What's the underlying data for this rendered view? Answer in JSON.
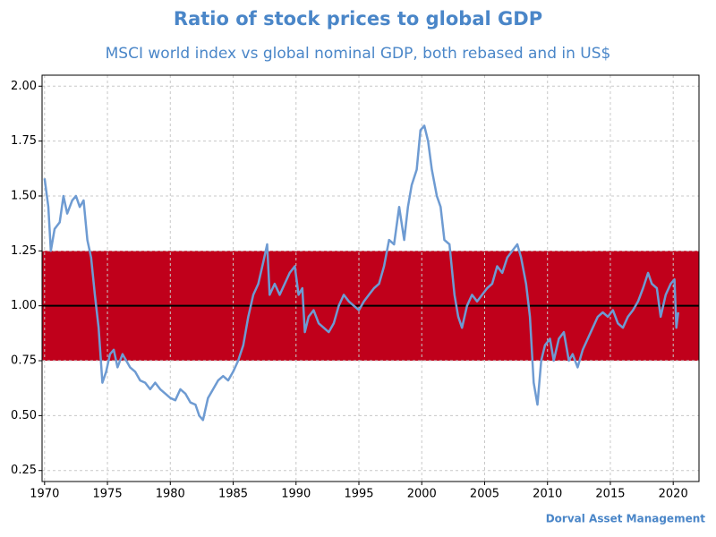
{
  "chart_data": {
    "type": "line",
    "title": "Ratio of stock prices to global GDP",
    "subtitle": "MSCI world index vs global nominal GDP, both rebased and in US$",
    "source": "Dorval Asset Management",
    "x": [
      1970.0,
      1970.3,
      1970.5,
      1970.8,
      1971.2,
      1971.5,
      1971.8,
      1972.2,
      1972.5,
      1972.8,
      1973.1,
      1973.4,
      1973.7,
      1974.0,
      1974.3,
      1974.6,
      1974.9,
      1975.2,
      1975.5,
      1975.8,
      1976.2,
      1976.5,
      1976.8,
      1977.2,
      1977.6,
      1978.0,
      1978.4,
      1978.8,
      1979.2,
      1979.6,
      1980.0,
      1980.4,
      1980.8,
      1981.2,
      1981.6,
      1982.0,
      1982.3,
      1982.6,
      1983.0,
      1983.4,
      1983.8,
      1984.2,
      1984.6,
      1985.0,
      1985.4,
      1985.8,
      1986.2,
      1986.6,
      1987.0,
      1987.4,
      1987.7,
      1987.9,
      1988.3,
      1988.7,
      1989.1,
      1989.5,
      1989.9,
      1990.2,
      1990.5,
      1990.7,
      1991.0,
      1991.4,
      1991.8,
      1992.2,
      1992.6,
      1993.0,
      1993.4,
      1993.8,
      1994.2,
      1994.6,
      1995.0,
      1995.4,
      1995.8,
      1996.2,
      1996.6,
      1997.0,
      1997.4,
      1997.8,
      1998.2,
      1998.6,
      1998.9,
      1999.2,
      1999.6,
      1999.9,
      2000.2,
      2000.5,
      2000.8,
      2001.2,
      2001.5,
      2001.8,
      2002.2,
      2002.6,
      2002.9,
      2003.2,
      2003.6,
      2004.0,
      2004.4,
      2004.8,
      2005.2,
      2005.6,
      2006.0,
      2006.4,
      2006.8,
      2007.2,
      2007.6,
      2007.9,
      2008.3,
      2008.6,
      2008.9,
      2009.2,
      2009.5,
      2009.8,
      2010.2,
      2010.5,
      2010.9,
      2011.3,
      2011.7,
      2012.0,
      2012.4,
      2012.8,
      2013.2,
      2013.6,
      2014.0,
      2014.4,
      2014.8,
      2015.2,
      2015.6,
      2016.0,
      2016.4,
      2016.8,
      2017.2,
      2017.6,
      2018.0,
      2018.3,
      2018.7,
      2019.0,
      2019.4,
      2019.8,
      2020.1,
      2020.25,
      2020.4
    ],
    "values": [
      1.58,
      1.45,
      1.25,
      1.35,
      1.38,
      1.5,
      1.42,
      1.48,
      1.5,
      1.45,
      1.48,
      1.3,
      1.22,
      1.05,
      0.9,
      0.65,
      0.7,
      0.78,
      0.8,
      0.72,
      0.78,
      0.75,
      0.72,
      0.7,
      0.66,
      0.65,
      0.62,
      0.65,
      0.62,
      0.6,
      0.58,
      0.57,
      0.62,
      0.6,
      0.56,
      0.55,
      0.5,
      0.48,
      0.58,
      0.62,
      0.66,
      0.68,
      0.66,
      0.7,
      0.75,
      0.82,
      0.95,
      1.05,
      1.1,
      1.2,
      1.28,
      1.05,
      1.1,
      1.05,
      1.1,
      1.15,
      1.18,
      1.05,
      1.08,
      0.88,
      0.95,
      0.98,
      0.92,
      0.9,
      0.88,
      0.92,
      1.0,
      1.05,
      1.02,
      1.0,
      0.98,
      1.02,
      1.05,
      1.08,
      1.1,
      1.18,
      1.3,
      1.28,
      1.45,
      1.3,
      1.45,
      1.55,
      1.62,
      1.8,
      1.82,
      1.75,
      1.62,
      1.5,
      1.45,
      1.3,
      1.28,
      1.05,
      0.95,
      0.9,
      1.0,
      1.05,
      1.02,
      1.05,
      1.08,
      1.1,
      1.18,
      1.15,
      1.22,
      1.25,
      1.28,
      1.22,
      1.1,
      0.95,
      0.65,
      0.55,
      0.75,
      0.82,
      0.85,
      0.75,
      0.85,
      0.88,
      0.75,
      0.78,
      0.72,
      0.8,
      0.85,
      0.9,
      0.95,
      0.97,
      0.95,
      0.98,
      0.92,
      0.9,
      0.95,
      0.98,
      1.02,
      1.08,
      1.15,
      1.1,
      1.08,
      0.95,
      1.05,
      1.1,
      1.12,
      0.9,
      0.97
    ],
    "color": "#6e9bd2",
    "band": [
      0.75,
      1.25
    ],
    "band_color": "#c0001b",
    "reference_line": 1.0,
    "reference_color": "#000000",
    "xlim": [
      1969.8,
      2022.05
    ],
    "xticks": [
      1970,
      1975,
      1980,
      1985,
      1990,
      1995,
      2000,
      2005,
      2010,
      2015,
      2020
    ],
    "ylim": [
      0.2,
      2.05
    ],
    "yticks": [
      {
        "value": 0.25,
        "label": "0.25"
      },
      {
        "value": 0.5,
        "label": "0.50"
      },
      {
        "value": 0.75,
        "label": "0.75"
      },
      {
        "value": 1,
        "label": "1.00"
      },
      {
        "value": 1.25,
        "label": "1.25"
      },
      {
        "value": 1.5,
        "label": "1.50"
      },
      {
        "value": 1.75,
        "label": "1.75"
      },
      {
        "value": 2,
        "label": "2.00"
      }
    ],
    "grid": true
  }
}
